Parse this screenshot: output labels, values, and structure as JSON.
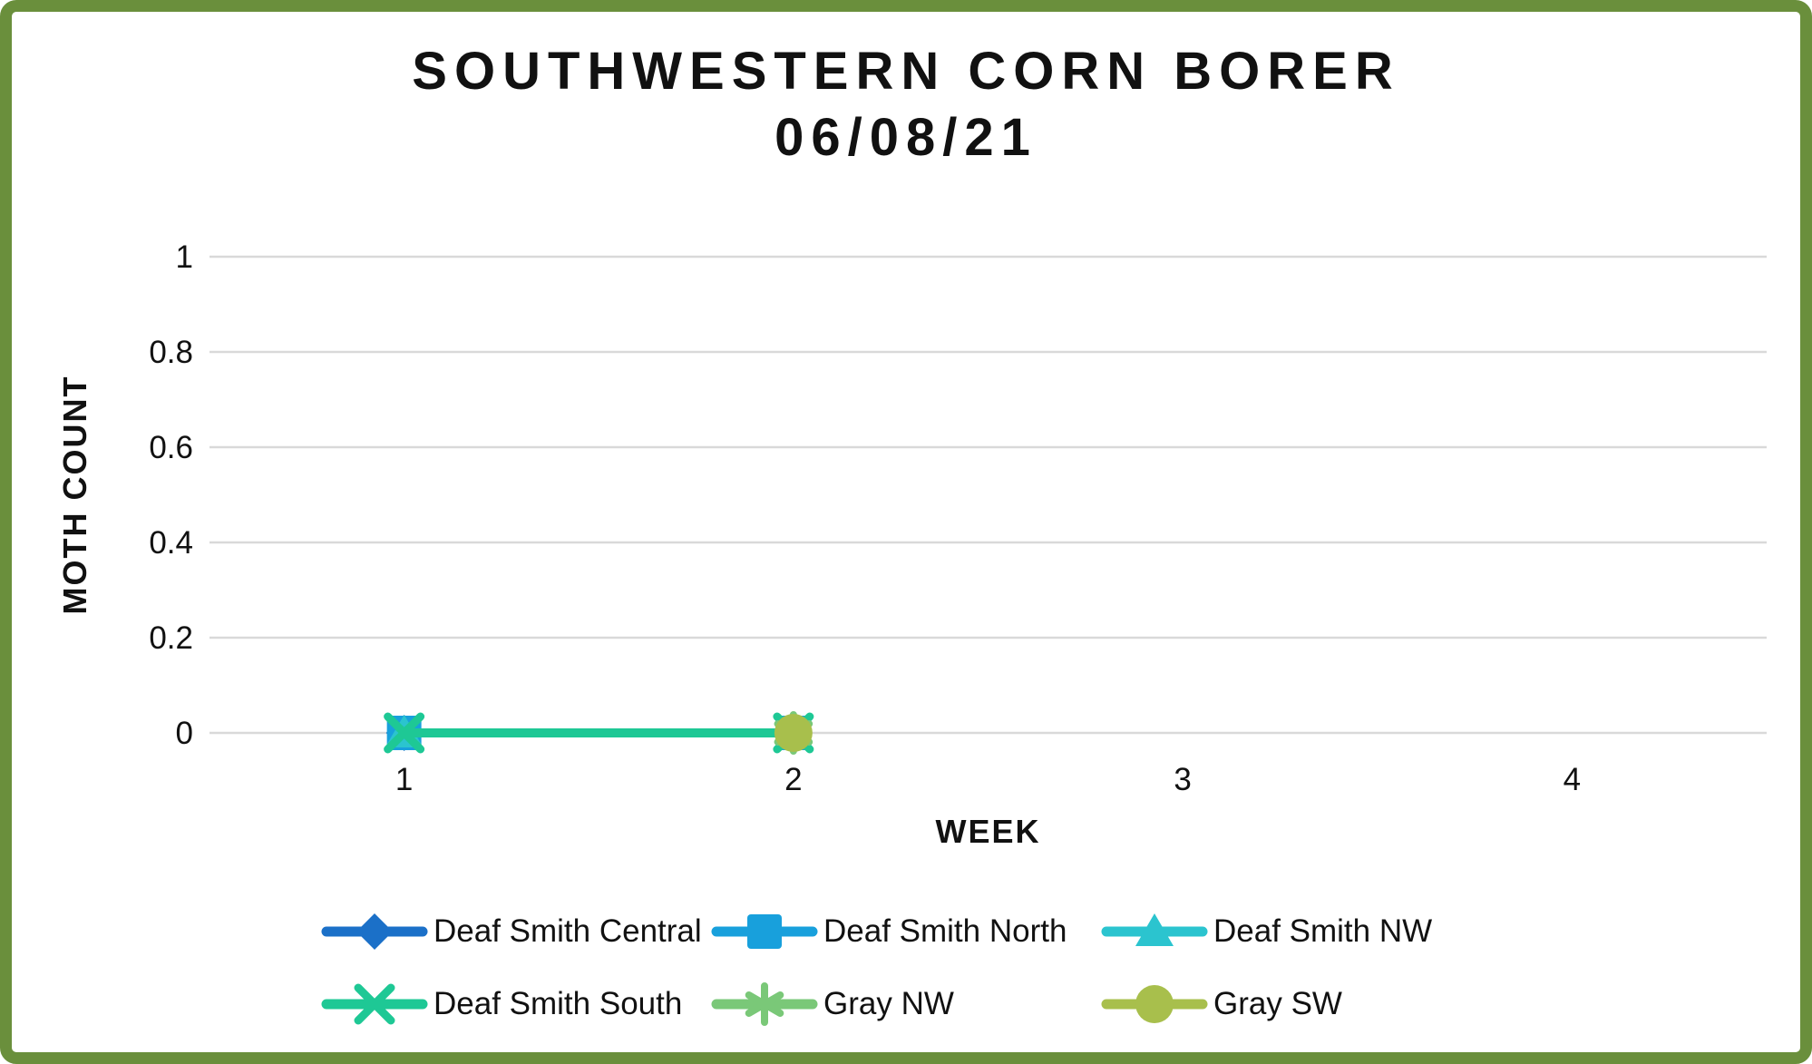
{
  "frame": {
    "border_color": "#6a8f3c"
  },
  "title": {
    "line1": "SOUTHWESTERN CORN BORER",
    "line2": "06/08/21"
  },
  "chart_data": {
    "type": "line",
    "title": "SOUTHWESTERN CORN BORER",
    "subtitle": "06/08/21",
    "xlabel": "WEEK",
    "ylabel": "MOTH COUNT",
    "categories": [
      "1",
      "2",
      "3",
      "4"
    ],
    "ylim": [
      0,
      1
    ],
    "yticks": [
      0,
      0.2,
      0.4,
      0.6,
      0.8,
      1
    ],
    "ytick_labels": [
      "0",
      "0.2",
      "0.4",
      "0.6",
      "0.8",
      "1"
    ],
    "grid": true,
    "legend_position": "bottom",
    "series": [
      {
        "name": "Deaf Smith Central",
        "color": "#1b70c8",
        "marker": "diamond",
        "values": [
          0,
          0,
          null,
          null
        ]
      },
      {
        "name": "Deaf Smith North",
        "color": "#18a0dc",
        "marker": "square",
        "values": [
          0,
          0,
          null,
          null
        ]
      },
      {
        "name": "Deaf Smith NW",
        "color": "#2bc4cf",
        "marker": "triangle",
        "values": [
          0,
          0,
          null,
          null
        ]
      },
      {
        "name": "Deaf Smith South",
        "color": "#1ec895",
        "marker": "x",
        "values": [
          0,
          0,
          null,
          null
        ]
      },
      {
        "name": "Gray NW",
        "color": "#7ac878",
        "marker": "asterisk",
        "values": [
          null,
          0,
          null,
          null
        ]
      },
      {
        "name": "Gray SW",
        "color": "#a8bf4c",
        "marker": "circle",
        "values": [
          null,
          0,
          null,
          null
        ]
      }
    ],
    "colors": {
      "gridline": "#d9d9d9",
      "text": "#111111"
    }
  }
}
